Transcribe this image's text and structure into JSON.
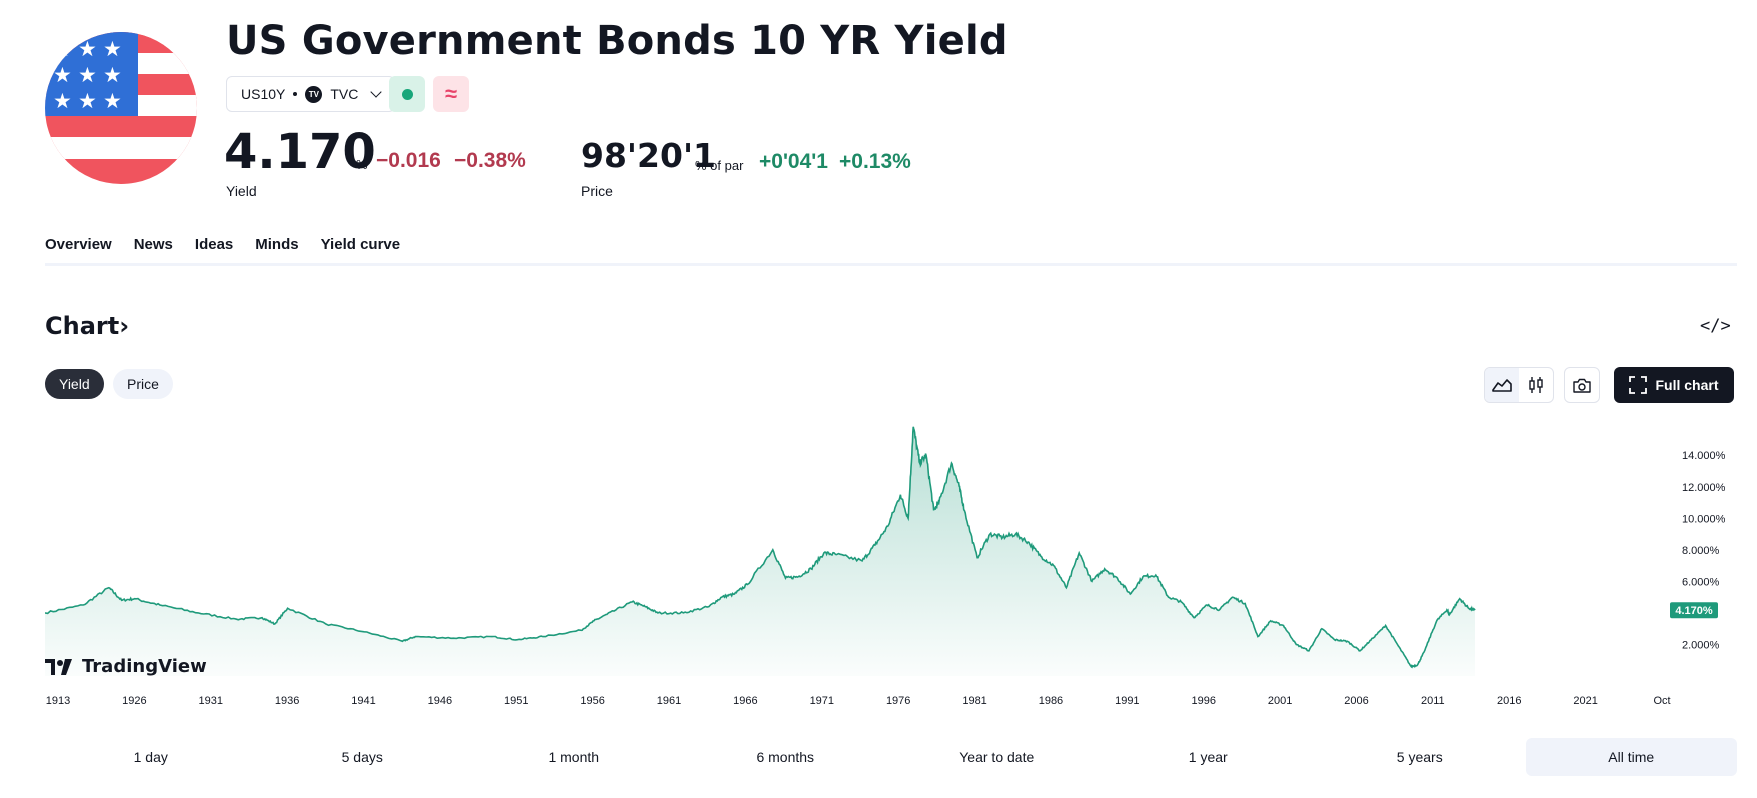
{
  "header": {
    "title": "US Government Bonds 10 YR Yield",
    "symbol": "US10Y",
    "exchange": "TVC",
    "exchange_badge": "TV"
  },
  "quote": {
    "yield": {
      "value": "4.170",
      "unit": "%",
      "change": "−0.016",
      "change_pct": "−0.38%",
      "label": "Yield"
    },
    "price": {
      "value": "98'20'1",
      "unit": "% of par",
      "change": "+0'04'1",
      "change_pct": "+0.13%",
      "label": "Price"
    }
  },
  "tabs": [
    "Overview",
    "News",
    "Ideas",
    "Minds",
    "Yield curve"
  ],
  "chart_section": {
    "heading": "Chart",
    "heading_suffix": "›",
    "embed_label": "</>",
    "toggles": [
      "Yield",
      "Price"
    ],
    "full_chart_label": "Full chart",
    "watermark": "TradingView"
  },
  "ranges": [
    "1 day",
    "5 days",
    "1 month",
    "6 months",
    "Year to date",
    "1 year",
    "5 years",
    "All time"
  ],
  "colors": {
    "line": "#1f9a7b",
    "negative": "#b23a4f",
    "positive": "#1e8a66",
    "flag_blue": "#2f6fd6",
    "flag_red": "#f0545e"
  },
  "chart_data": {
    "type": "area",
    "x_ticks": [
      "1913",
      "1926",
      "1931",
      "1936",
      "1941",
      "1946",
      "1951",
      "1956",
      "1961",
      "1966",
      "1971",
      "1976",
      "1981",
      "1986",
      "1991",
      "1996",
      "2001",
      "2006",
      "2011",
      "2016",
      "2021",
      "Oct"
    ],
    "y_ticks": [
      "14.000%",
      "12.000%",
      "10.000%",
      "8.000%",
      "6.000%",
      "2.000%"
    ],
    "ylim": [
      0,
      15.6
    ],
    "last_value_label": "4.170%",
    "x": [
      1913,
      1916,
      1918,
      1919,
      1920,
      1922,
      1925,
      1928,
      1930,
      1931,
      1932,
      1935,
      1938,
      1941,
      1942,
      1945,
      1948,
      1950,
      1952,
      1955,
      1956,
      1957,
      1959,
      1960,
      1961,
      1963,
      1965,
      1966,
      1967,
      1968,
      1970,
      1971,
      1972,
      1973,
      1974,
      1975,
      1977,
      1978,
      1979,
      1980,
      1980.6,
      1981,
      1981.5,
      1982,
      1982.6,
      1983,
      1984,
      1984.6,
      1985,
      1986,
      1987,
      1988,
      1989,
      1990,
      1991,
      1992,
      1993,
      1994,
      1995,
      1996,
      1997,
      1998,
      1999,
      2000,
      2001,
      2002,
      2003,
      2004,
      2005,
      2006,
      2007,
      2008,
      2009,
      2010,
      2011,
      2012,
      2013,
      2014,
      2015,
      2016,
      2017,
      2018,
      2019,
      2020,
      2020.5,
      2021,
      2022,
      2022.8,
      2023,
      2023.8,
      2024.5,
      2025
    ],
    "y": [
      4.0,
      4.5,
      5.6,
      4.8,
      4.9,
      4.5,
      4.0,
      3.6,
      3.7,
      3.3,
      4.3,
      3.3,
      2.8,
      2.2,
      2.5,
      2.4,
      2.5,
      2.3,
      2.5,
      2.9,
      3.5,
      3.9,
      4.7,
      4.4,
      4.0,
      4.0,
      4.4,
      5.0,
      5.2,
      5.8,
      8.0,
      6.2,
      6.3,
      6.8,
      7.8,
      7.7,
      7.3,
      8.3,
      9.5,
      11.5,
      10.0,
      15.8,
      13.5,
      14.0,
      10.5,
      11.0,
      13.5,
      12.0,
      10.5,
      7.5,
      9.0,
      8.8,
      9.0,
      8.5,
      7.6,
      7.0,
      5.6,
      7.8,
      6.0,
      6.8,
      6.2,
      5.2,
      6.3,
      6.4,
      5.0,
      4.7,
      3.7,
      4.5,
      4.2,
      5.0,
      4.6,
      2.5,
      3.5,
      3.2,
      2.0,
      1.6,
      3.0,
      2.3,
      2.2,
      1.6,
      2.4,
      3.2,
      1.9,
      0.6,
      0.7,
      1.5,
      3.5,
      4.2,
      3.9,
      4.9,
      4.3,
      4.17
    ]
  }
}
